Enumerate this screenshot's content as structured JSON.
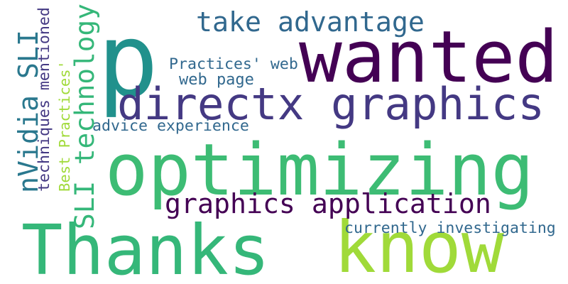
{
  "words": [
    {
      "id": "p",
      "text": "p",
      "color": "#21918c"
    },
    {
      "id": "wanted",
      "text": "wanted",
      "color": "#440154"
    },
    {
      "id": "take-advantage",
      "text": "take advantage",
      "color": "#31688e"
    },
    {
      "id": "directx-graphics",
      "text": "directx graphics",
      "color": "#443983"
    },
    {
      "id": "optimizing",
      "text": "optimizing",
      "color": "#3dbc74"
    },
    {
      "id": "thanks",
      "text": "Thanks",
      "color": "#35b779"
    },
    {
      "id": "know",
      "text": "know",
      "color": "#a0da39"
    },
    {
      "id": "graphics-application",
      "text": "graphics application",
      "color": "#440154"
    },
    {
      "id": "currently-investigating",
      "text": "currently investigating",
      "color": "#31688e"
    },
    {
      "id": "practices-web",
      "text": "Practices' web",
      "color": "#31688e"
    },
    {
      "id": "web-page",
      "text": "web page",
      "color": "#31688e"
    },
    {
      "id": "advice-experience",
      "text": "advice experience",
      "color": "#31688e"
    },
    {
      "id": "sli-technology",
      "text": "SLI technology",
      "color": "#35b779"
    },
    {
      "id": "nvidia-sli",
      "text": "nVidia SLI",
      "color": "#2a788e"
    },
    {
      "id": "techniques-mentioned",
      "text": "techniques mentioned",
      "color": "#443983"
    },
    {
      "id": "best-practices",
      "text": "Best Practices'",
      "color": "#a0da39"
    }
  ]
}
